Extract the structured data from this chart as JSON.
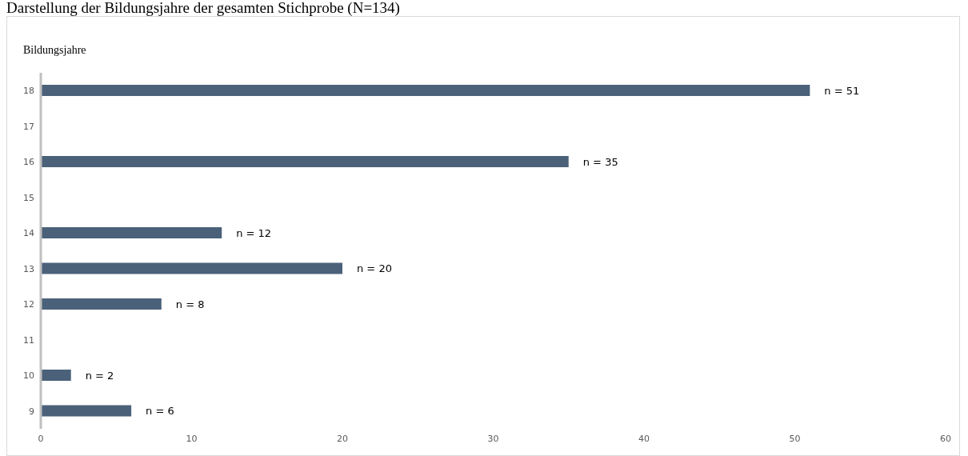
{
  "chart_data": {
    "type": "bar",
    "orientation": "horizontal",
    "title": "Darstellung der Bildungsjahre der gesamten Stichprobe (N=134)",
    "ylabel": "Bildungsjahre",
    "categories": [
      "18",
      "17",
      "16",
      "15",
      "14",
      "13",
      "12",
      "11",
      "10",
      "9"
    ],
    "values": [
      51,
      null,
      35,
      null,
      12,
      20,
      8,
      null,
      2,
      6
    ],
    "value_labels": [
      "n = 51",
      null,
      "n = 35",
      null,
      "n = 12",
      "n = 20",
      "n = 8",
      null,
      "n = 2",
      "n = 6"
    ],
    "color": "#4a6179",
    "xlim": [
      0,
      60
    ],
    "xticks": [
      0,
      10,
      20,
      30,
      40,
      50,
      60
    ],
    "grid": false,
    "legend": false
  }
}
